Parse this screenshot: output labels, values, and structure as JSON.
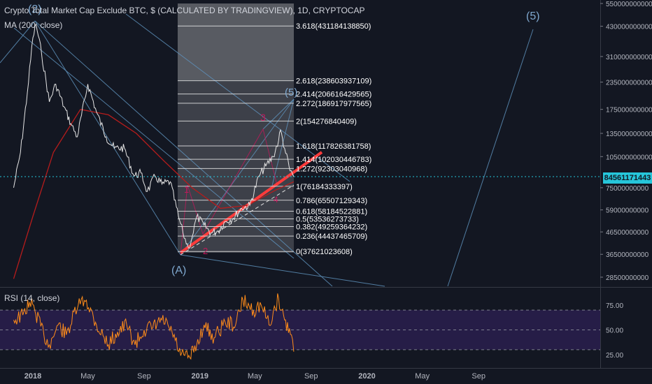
{
  "header": {
    "title": "Crypto Total Market Cap Exclude BTC, $ (CALCULATED BY TRADINGVIEW), 1D, CRYPTOCAP",
    "ma_label": "MA (200, close)",
    "rsi_label": "RSI (14, close)"
  },
  "price_marker": {
    "label": "84561171443",
    "value": 84561171443,
    "color": "#26c6da"
  },
  "colors": {
    "background": "#131722",
    "price_line": "#e6e6e6",
    "ma_line": "#b71c1c",
    "rsi_line": "#ff8c1a",
    "rsi_band": "#2a1f4d",
    "trend_red": "#ff3b3b",
    "wave_line": "#5d8fb8",
    "wave_text": "#7fa8cf",
    "wave_pink": "#c2185b"
  },
  "chart_data": [
    {
      "type": "line",
      "panel": "price",
      "ylabel": "",
      "y_scale": "log",
      "x_axis_labels": [
        "2018",
        "May",
        "Sep",
        "2019",
        "May",
        "Sep",
        "2020",
        "May",
        "Sep"
      ],
      "y_axis_labels": [
        "550000000000",
        "430000000000",
        "310000000000",
        "235000000000",
        "175000000000",
        "135000000000",
        "105000000000",
        "75000000000",
        "59000000000",
        "46500000000",
        "36500000000",
        "28500000000"
      ],
      "y_axis_values": [
        550000000000,
        430000000000,
        310000000000,
        235000000000,
        175000000000,
        135000000000,
        105000000000,
        75000000000,
        59000000000,
        46500000000,
        36500000000,
        28500000000
      ],
      "series": [
        {
          "role": "price",
          "x": [
            "2017-11-20",
            "2017-12-05",
            "2017-12-20",
            "2018-01-01",
            "2018-01-08",
            "2018-01-20",
            "2018-02-06",
            "2018-02-20",
            "2018-03-10",
            "2018-03-25",
            "2018-04-08",
            "2018-05-01",
            "2018-05-20",
            "2018-06-10",
            "2018-06-28",
            "2018-07-20",
            "2018-08-10",
            "2018-08-25",
            "2018-09-08",
            "2018-09-25",
            "2018-10-10",
            "2018-10-28",
            "2018-11-15",
            "2018-11-25",
            "2018-12-07",
            "2018-12-15",
            "2018-12-25",
            "2019-01-10",
            "2019-01-25",
            "2019-02-10",
            "2019-02-25",
            "2019-03-15",
            "2019-04-02",
            "2019-04-20",
            "2019-05-10",
            "2019-05-25",
            "2019-06-10",
            "2019-06-22",
            "2019-06-26",
            "2019-07-05",
            "2019-07-17",
            "2019-07-25"
          ],
          "y": [
            75,
            110,
            210,
            380,
            440,
            320,
            190,
            230,
            180,
            150,
            130,
            230,
            170,
            130,
            115,
            115,
            85,
            88,
            72,
            85,
            78,
            80,
            55,
            46,
            39,
            44,
            55,
            50,
            46,
            47,
            52,
            54,
            60,
            62,
            85,
            95,
            105,
            125,
            140,
            115,
            90,
            84.5
          ],
          "y_unit": "billion USD"
        },
        {
          "name": "MA (200, close)",
          "role": "ma",
          "x": [
            "2017-11-20",
            "2018-01-01",
            "2018-02-15",
            "2018-04-15",
            "2018-06-15",
            "2018-08-15",
            "2018-10-15",
            "2018-12-15",
            "2019-02-15",
            "2019-04-15",
            "2019-06-15",
            "2019-07-25"
          ],
          "y": [
            28,
            55,
            110,
            175,
            165,
            135,
            100,
            75,
            60,
            62,
            73,
            80
          ],
          "y_unit": "billion USD"
        }
      ],
      "fibonacci": [
        {
          "label": "3.618(431184138850)",
          "value": 431184138850
        },
        {
          "label": "2.618(238603937109)",
          "value": 238603937109
        },
        {
          "label": "2.414(206616429565)",
          "value": 206616429565
        },
        {
          "label": "2.272(186917977565)",
          "value": 186917977565
        },
        {
          "label": "2(154276840409)",
          "value": 154276840409
        },
        {
          "label": "1.618(117826381758)",
          "value": 117826381758
        },
        {
          "label": "1.414(102030446783)",
          "value": 102030446783
        },
        {
          "label": "1.272(92303040968)",
          "value": 92303040968
        },
        {
          "label": "1(76184333397)",
          "value": 76184333397
        },
        {
          "label": "0.786(65507129343)",
          "value": 65507129343
        },
        {
          "label": "0.618(58184522881)",
          "value": 58184522881
        },
        {
          "label": "0.5(53536273733)",
          "value": 53536273733
        },
        {
          "label": "0.382(49259364232)",
          "value": 49259364232
        },
        {
          "label": "0.236(44437465709)",
          "value": 44437465709
        },
        {
          "label": "0(37621023608)",
          "value": 37621023608
        }
      ],
      "wave_labels": [
        "(2)",
        "(A)",
        "(5)",
        "(5)",
        "3",
        "1",
        "2",
        "4"
      ]
    },
    {
      "type": "line",
      "panel": "rsi",
      "title": "RSI (14, close)",
      "y_axis_labels": [
        "75.00",
        "50.00",
        "25.00"
      ],
      "ylim": [
        20,
        85
      ],
      "bands": [
        30,
        70
      ],
      "series": [
        {
          "name": "RSI (14, close)",
          "x": [
            "2017-11-20",
            "2017-12-10",
            "2017-12-25",
            "2018-01-05",
            "2018-01-25",
            "2018-02-06",
            "2018-02-25",
            "2018-03-15",
            "2018-04-10",
            "2018-04-28",
            "2018-05-20",
            "2018-06-15",
            "2018-07-05",
            "2018-07-25",
            "2018-08-12",
            "2018-09-01",
            "2018-09-20",
            "2018-10-10",
            "2018-11-01",
            "2018-11-20",
            "2018-12-10",
            "2018-12-25",
            "2019-01-10",
            "2019-02-01",
            "2019-02-25",
            "2019-03-20",
            "2019-04-05",
            "2019-04-28",
            "2019-05-15",
            "2019-06-01",
            "2019-06-22",
            "2019-07-05",
            "2019-07-20",
            "2019-07-25"
          ],
          "y": [
            60,
            65,
            78,
            70,
            45,
            35,
            55,
            45,
            75,
            80,
            55,
            35,
            48,
            55,
            35,
            50,
            52,
            60,
            48,
            24,
            22,
            35,
            55,
            42,
            58,
            55,
            80,
            70,
            75,
            55,
            82,
            60,
            45,
            28
          ]
        }
      ]
    }
  ]
}
